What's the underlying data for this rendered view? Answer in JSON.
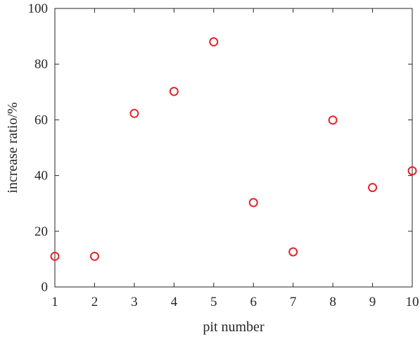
{
  "chart_data": {
    "type": "scatter",
    "title": "",
    "xlabel": "pit number",
    "ylabel": "increase ratio/%",
    "xlim": [
      1,
      10
    ],
    "ylim": [
      0,
      100
    ],
    "xticks": [
      "1",
      "2",
      "3",
      "4",
      "5",
      "6",
      "7",
      "8",
      "9",
      "10"
    ],
    "yticks": [
      "0",
      "20",
      "40",
      "60",
      "80",
      "100"
    ],
    "grid": false,
    "marker": "circle-open",
    "color": "#e3242b",
    "series": [
      {
        "x": [
          1,
          2,
          3,
          4,
          5,
          6,
          7,
          8,
          9,
          10
        ],
        "y": [
          11.0,
          11.0,
          62.3,
          70.2,
          88.0,
          30.3,
          12.6,
          59.9,
          35.7,
          41.7
        ]
      }
    ]
  }
}
